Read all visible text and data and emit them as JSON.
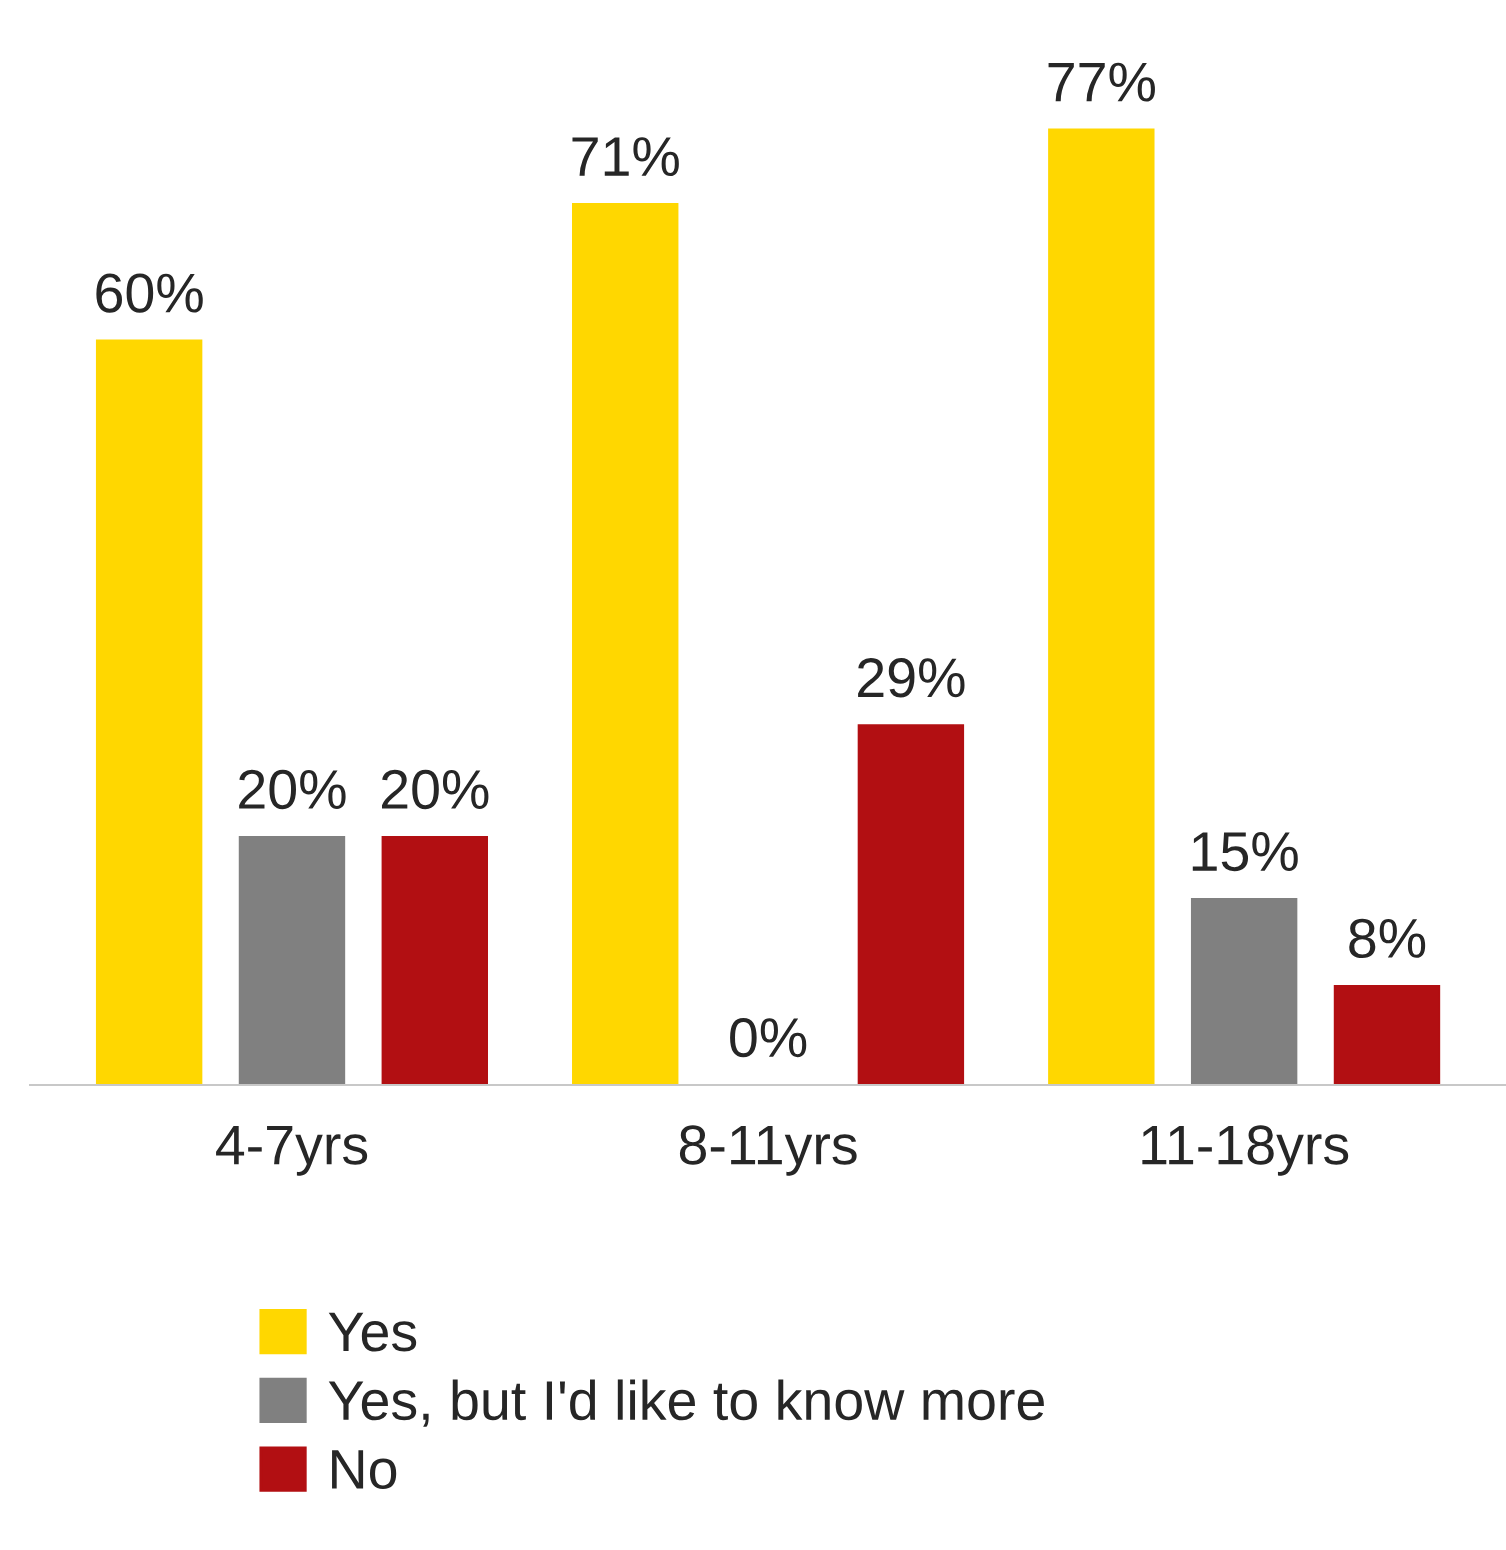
{
  "chart_data": {
    "type": "bar",
    "categories": [
      "4-7yrs",
      "8-11yrs",
      "11-18yrs"
    ],
    "series": [
      {
        "name": "Yes",
        "color": "#ffd700",
        "values": [
          60,
          71,
          77
        ],
        "value_labels": [
          "60%",
          "71%",
          "77%"
        ]
      },
      {
        "name": "Yes, but I'd like to know more",
        "color": "#808080",
        "values": [
          20,
          0,
          15
        ],
        "value_labels": [
          "20%",
          "0%",
          "15%"
        ]
      },
      {
        "name": "No",
        "color": "#b20f12",
        "values": [
          20,
          29,
          8
        ],
        "value_labels": [
          "20%",
          "29%",
          "8%"
        ]
      }
    ],
    "legend": "bottom",
    "grid": false
  }
}
